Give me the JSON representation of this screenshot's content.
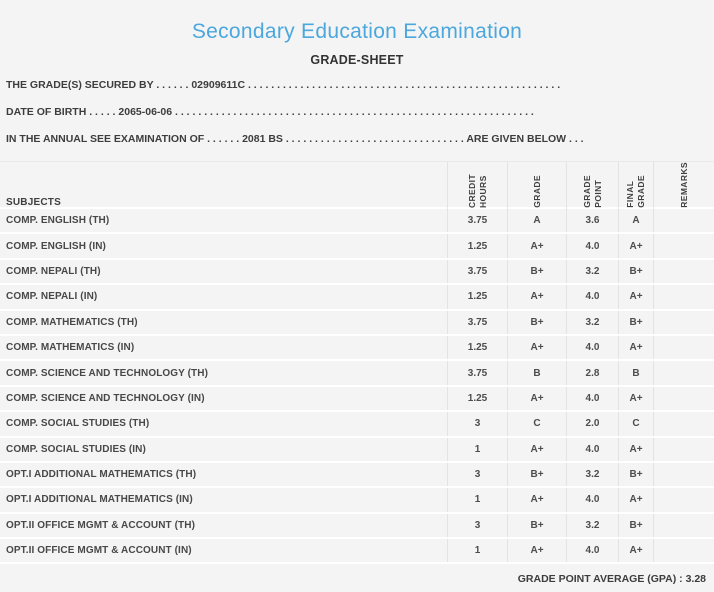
{
  "colors": {
    "accent": "#4ba7dd",
    "page_bg": "#f4f4f4",
    "col_line": "#e3e3e3",
    "row_line": "#ffffff",
    "text": "#3c3c3c"
  },
  "header": {
    "title": "Secondary Education Examination",
    "subtitle": "GRADE-SHEET"
  },
  "info": {
    "line1": "THE GRADE(S) SECURED BY . . . . . . 02909611C . . . . . . . . . . . . . . . . . . . . . . . . . . . . . . . . . . . . . . . . . . . . . . . . . . . . . .",
    "line2": "DATE OF BIRTH . . . . . 2065-06-06 . . . . . . . . . . . . . . . . . . . . . . . . . . . . . . . . . . . . . . . . . . . . . . . . . . . . . . . . . . . . . .",
    "line3": "IN THE ANNUAL SEE EXAMINATION OF . . . . . . 2081 BS . . . . . . . . . . . . . . . . . . . . . . . . . . . . . . . ARE GIVEN BELOW . . ."
  },
  "table": {
    "headers": {
      "subjects": "SUBJECTS",
      "credit_hours": "CREDIT\nHOURS",
      "grade": "GRADE",
      "grade_point": "GRADE\nPOINT",
      "final_grade": "FINAL\nGRADE",
      "remarks": "REMARKS"
    },
    "rows": [
      {
        "subject": "COMP. ENGLISH (TH)",
        "credit_hours": "3.75",
        "grade": "A",
        "grade_point": "3.6",
        "final_grade": "A",
        "remarks": ""
      },
      {
        "subject": "COMP. ENGLISH (IN)",
        "credit_hours": "1.25",
        "grade": "A+",
        "grade_point": "4.0",
        "final_grade": "A+",
        "remarks": ""
      },
      {
        "subject": "COMP. NEPALI (TH)",
        "credit_hours": "3.75",
        "grade": "B+",
        "grade_point": "3.2",
        "final_grade": "B+",
        "remarks": ""
      },
      {
        "subject": "COMP. NEPALI (IN)",
        "credit_hours": "1.25",
        "grade": "A+",
        "grade_point": "4.0",
        "final_grade": "A+",
        "remarks": ""
      },
      {
        "subject": "COMP. MATHEMATICS (TH)",
        "credit_hours": "3.75",
        "grade": "B+",
        "grade_point": "3.2",
        "final_grade": "B+",
        "remarks": ""
      },
      {
        "subject": "COMP. MATHEMATICS (IN)",
        "credit_hours": "1.25",
        "grade": "A+",
        "grade_point": "4.0",
        "final_grade": "A+",
        "remarks": ""
      },
      {
        "subject": "COMP. SCIENCE AND TECHNOLOGY (TH)",
        "credit_hours": "3.75",
        "grade": "B",
        "grade_point": "2.8",
        "final_grade": "B",
        "remarks": ""
      },
      {
        "subject": "COMP. SCIENCE AND TECHNOLOGY (IN)",
        "credit_hours": "1.25",
        "grade": "A+",
        "grade_point": "4.0",
        "final_grade": "A+",
        "remarks": ""
      },
      {
        "subject": "COMP. SOCIAL STUDIES (TH)",
        "credit_hours": "3",
        "grade": "C",
        "grade_point": "2.0",
        "final_grade": "C",
        "remarks": ""
      },
      {
        "subject": "COMP. SOCIAL STUDIES (IN)",
        "credit_hours": "1",
        "grade": "A+",
        "grade_point": "4.0",
        "final_grade": "A+",
        "remarks": ""
      },
      {
        "subject": "OPT.I ADDITIONAL MATHEMATICS (TH)",
        "credit_hours": "3",
        "grade": "B+",
        "grade_point": "3.2",
        "final_grade": "B+",
        "remarks": ""
      },
      {
        "subject": "OPT.I ADDITIONAL MATHEMATICS (IN)",
        "credit_hours": "1",
        "grade": "A+",
        "grade_point": "4.0",
        "final_grade": "A+",
        "remarks": ""
      },
      {
        "subject": "OPT.II OFFICE MGMT & ACCOUNT (TH)",
        "credit_hours": "3",
        "grade": "B+",
        "grade_point": "3.2",
        "final_grade": "B+",
        "remarks": ""
      },
      {
        "subject": "OPT.II OFFICE MGMT & ACCOUNT (IN)",
        "credit_hours": "1",
        "grade": "A+",
        "grade_point": "4.0",
        "final_grade": "A+",
        "remarks": ""
      }
    ]
  },
  "footer": {
    "gpa_label": "GRADE POINT AVERAGE (GPA) :",
    "gpa_value": "3.28"
  }
}
